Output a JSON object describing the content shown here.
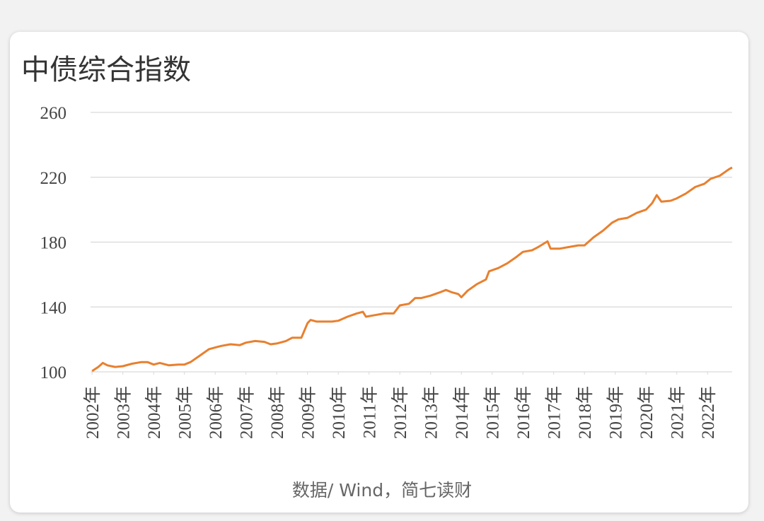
{
  "chart_data": {
    "type": "line",
    "title": "中债综合指数",
    "source": "数据/ Wind，简七读财",
    "x": [
      2002.0,
      2002.2,
      2002.35,
      2002.5,
      2002.75,
      2003.0,
      2003.3,
      2003.6,
      2003.8,
      2004.0,
      2004.2,
      2004.5,
      2004.8,
      2005.0,
      2005.2,
      2005.5,
      2005.8,
      2006.0,
      2006.2,
      2006.5,
      2006.8,
      2007.0,
      2007.3,
      2007.6,
      2007.8,
      2008.0,
      2008.3,
      2008.5,
      2008.8,
      2009.0,
      2009.1,
      2009.3,
      2009.6,
      2009.8,
      2010.0,
      2010.3,
      2010.6,
      2010.8,
      2010.9,
      2011.2,
      2011.5,
      2011.8,
      2012.0,
      2012.3,
      2012.5,
      2012.7,
      2013.0,
      2013.3,
      2013.5,
      2013.7,
      2013.9,
      2014.0,
      2014.2,
      2014.5,
      2014.8,
      2014.9,
      2015.2,
      2015.5,
      2015.8,
      2016.0,
      2016.3,
      2016.5,
      2016.8,
      2016.9,
      2017.2,
      2017.5,
      2017.8,
      2018.0,
      2018.3,
      2018.6,
      2018.9,
      2019.1,
      2019.4,
      2019.7,
      2020.0,
      2020.2,
      2020.35,
      2020.5,
      2020.8,
      2021.0,
      2021.3,
      2021.6,
      2021.9,
      2022.1,
      2022.4,
      2022.7,
      2022.8
    ],
    "series": [
      {
        "color": "#e8802f",
        "values": [
          100.5,
          103,
          105.5,
          104,
          103,
          103.5,
          105,
          106,
          106,
          104.5,
          105.5,
          104,
          104.5,
          104.5,
          106,
          110,
          114,
          115,
          116,
          117,
          116.5,
          118,
          119,
          118.5,
          117,
          117.5,
          119,
          121,
          121,
          130,
          132,
          131,
          131,
          131,
          131.5,
          134,
          136,
          137,
          134,
          135,
          136,
          136,
          141,
          142,
          145.5,
          145.5,
          147,
          149,
          150.5,
          149,
          148,
          146,
          150,
          154,
          157,
          162,
          164,
          167,
          171,
          174,
          175,
          177,
          180.5,
          176,
          176,
          177,
          178,
          178,
          183,
          187,
          192,
          194,
          195,
          198,
          200,
          204,
          209,
          205,
          205.5,
          207,
          210,
          214,
          216,
          219,
          221,
          225,
          226
        ]
      }
    ],
    "xlim": [
      2001.95,
      2022.8
    ],
    "xticks": [
      {
        "value": 2002,
        "label": "2002年"
      },
      {
        "value": 2003,
        "label": "2003年"
      },
      {
        "value": 2004,
        "label": "2004年"
      },
      {
        "value": 2005,
        "label": "2005年"
      },
      {
        "value": 2006,
        "label": "2006年"
      },
      {
        "value": 2007,
        "label": "2007年"
      },
      {
        "value": 2008,
        "label": "2008年"
      },
      {
        "value": 2009,
        "label": "2009年"
      },
      {
        "value": 2010,
        "label": "2010年"
      },
      {
        "value": 2011,
        "label": "2011年"
      },
      {
        "value": 2012,
        "label": "2012年"
      },
      {
        "value": 2013,
        "label": "2013年"
      },
      {
        "value": 2014,
        "label": "2014年"
      },
      {
        "value": 2015,
        "label": "2015年"
      },
      {
        "value": 2016,
        "label": "2016年"
      },
      {
        "value": 2017,
        "label": "2017年"
      },
      {
        "value": 2018,
        "label": "2018年"
      },
      {
        "value": 2019,
        "label": "2019年"
      },
      {
        "value": 2020,
        "label": "2020年"
      },
      {
        "value": 2021,
        "label": "2021年"
      },
      {
        "value": 2022,
        "label": "2022年"
      }
    ],
    "ylim": [
      100,
      260
    ],
    "yticks": [
      100,
      140,
      180,
      220,
      260
    ],
    "grid": true
  }
}
